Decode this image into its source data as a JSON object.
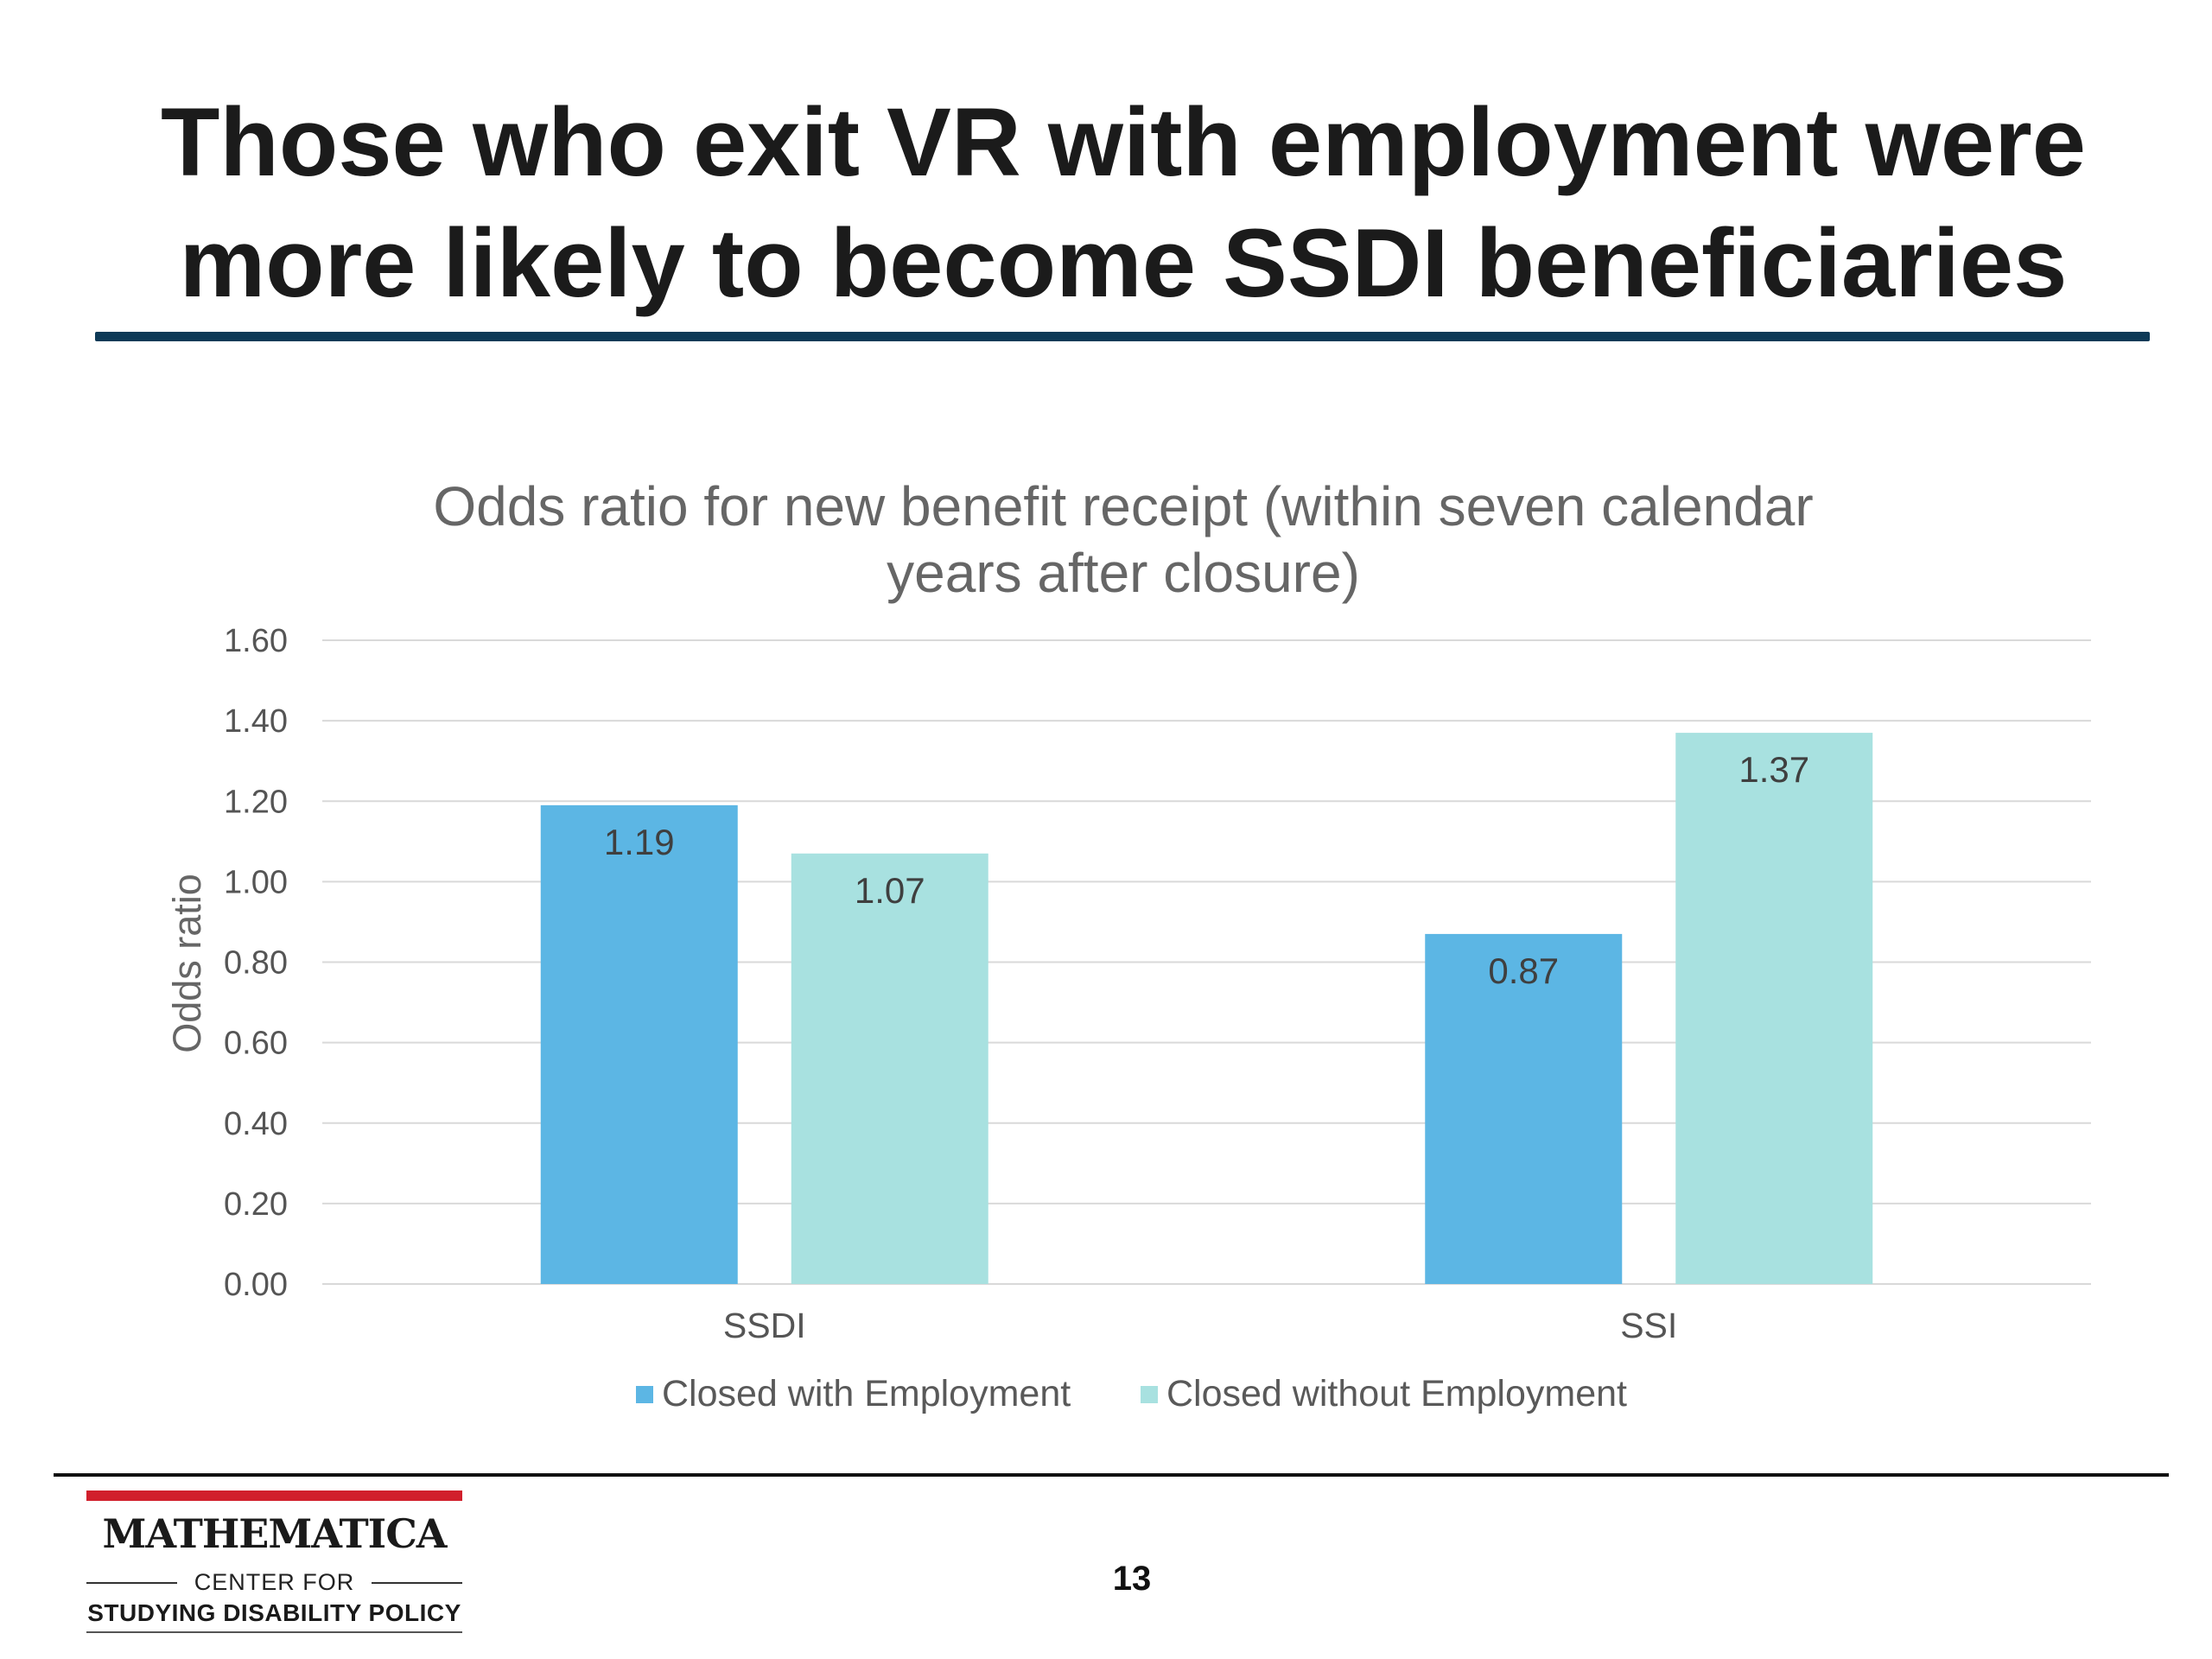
{
  "slide": {
    "title_line1": "Those who exit VR with employment were",
    "title_line2": "more likely to become SSDI beneficiaries",
    "page_number": "13"
  },
  "logo": {
    "name": "MATHEMATICA",
    "line1": "CENTER FOR",
    "line2": "STUDYING DISABILITY POLICY",
    "accent_color": "#d11f2c"
  },
  "chart_data": {
    "type": "bar",
    "title_line1": "Odds ratio for new benefit receipt (within seven calendar",
    "title_line2": "years after closure)",
    "ylabel": "Odds ratio",
    "xlabel": "",
    "categories": [
      "SSDI",
      "SSI"
    ],
    "ylim": [
      0,
      1.6
    ],
    "yticks": [
      "0.00",
      "0.20",
      "0.40",
      "0.60",
      "0.80",
      "1.00",
      "1.20",
      "1.40",
      "1.60"
    ],
    "grid": true,
    "legend_position": "bottom",
    "series": [
      {
        "name": "Closed with Employment",
        "color": "#5cb6e4",
        "values": [
          1.19,
          0.87
        ],
        "labels": [
          "1.19",
          "0.87"
        ]
      },
      {
        "name": "Closed without Employment",
        "color": "#a8e1e0",
        "values": [
          1.07,
          1.37
        ],
        "labels": [
          "1.07",
          "1.37"
        ]
      }
    ]
  }
}
